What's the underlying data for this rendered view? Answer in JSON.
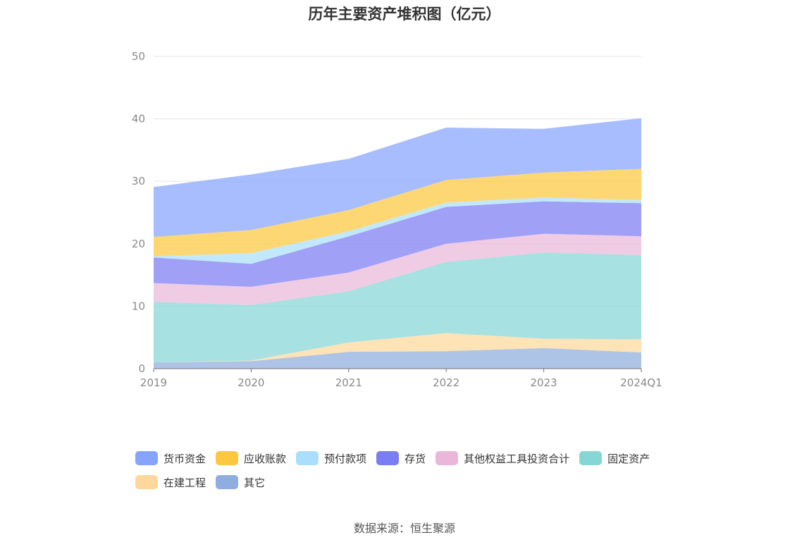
{
  "chart_data": {
    "type": "area",
    "title": "历年主要资产堆积图（亿元）",
    "categories": [
      "2019",
      "2020",
      "2021",
      "2022",
      "2023",
      "2024Q1"
    ],
    "ylim": [
      0,
      50
    ],
    "yticks": [
      "0",
      "10",
      "20",
      "30",
      "40",
      "50"
    ],
    "grid": true,
    "legend_position": "bottom",
    "stacked": true,
    "series": [
      {
        "name": "其它",
        "color": "#8fadde",
        "values": [
          1.0,
          1.2,
          2.7,
          2.8,
          3.3,
          2.6
        ]
      },
      {
        "name": "在建工程",
        "color": "#fdd89a",
        "values": [
          0.0,
          0.1,
          1.5,
          2.9,
          1.5,
          2.1
        ]
      },
      {
        "name": "固定资产",
        "color": "#86d6d6",
        "values": [
          9.7,
          8.9,
          8.2,
          11.4,
          13.8,
          13.5
        ]
      },
      {
        "name": "其他权益工具投资合计",
        "color": "#e9b8d9",
        "values": [
          3.0,
          2.9,
          3.0,
          2.9,
          3.0,
          3.0
        ]
      },
      {
        "name": "存货",
        "color": "#7b7df2",
        "values": [
          4.1,
          3.7,
          5.8,
          5.9,
          5.2,
          5.3
        ]
      },
      {
        "name": "预付款项",
        "color": "#a9dffa",
        "values": [
          0.2,
          1.7,
          0.8,
          0.7,
          0.6,
          0.5
        ]
      },
      {
        "name": "应收账款",
        "color": "#fdc840",
        "values": [
          3.1,
          3.7,
          3.4,
          3.6,
          4.0,
          5.0
        ]
      },
      {
        "name": "货币资金",
        "color": "#87a4fc",
        "values": [
          8.0,
          8.9,
          8.2,
          8.4,
          7.0,
          8.1
        ]
      }
    ]
  },
  "legend": [
    {
      "label": "货币资金",
      "color": "#87a4fc"
    },
    {
      "label": "应收账款",
      "color": "#fdc840"
    },
    {
      "label": "预付款项",
      "color": "#a9dffa"
    },
    {
      "label": "存货",
      "color": "#7b7df2"
    },
    {
      "label": "其他权益工具投资合计",
      "color": "#e9b8d9"
    },
    {
      "label": "固定资产",
      "color": "#86d6d6"
    },
    {
      "label": "在建工程",
      "color": "#fdd89a"
    },
    {
      "label": "其它",
      "color": "#8fadde"
    }
  ],
  "source": "数据来源：恒生聚源"
}
